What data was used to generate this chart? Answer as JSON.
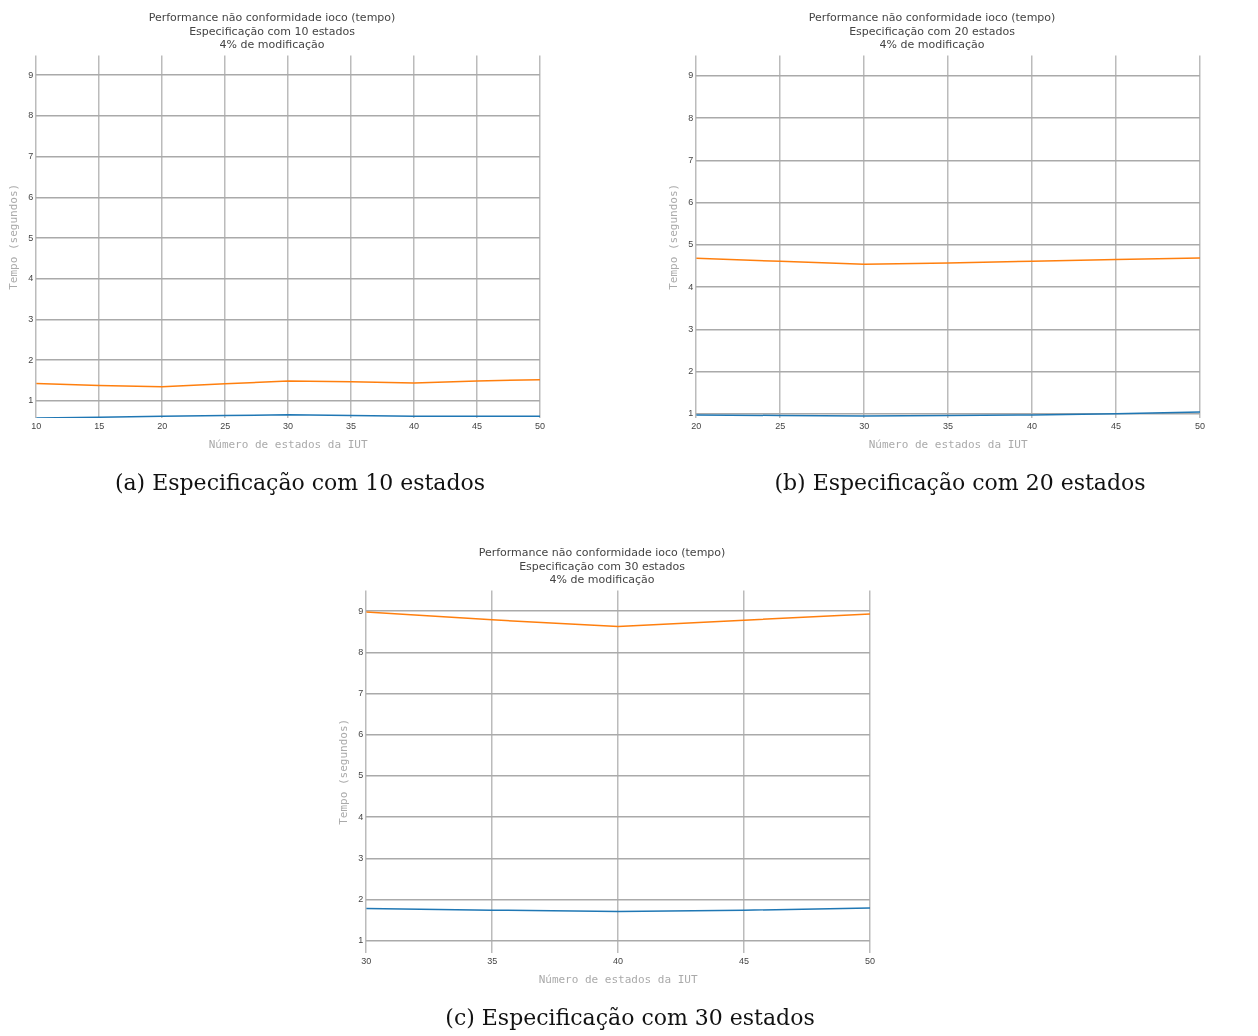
{
  "chart_data": [
    {
      "type": "line",
      "title": "Performance não conformidade ioco (tempo)",
      "subtitle": "Especificação com 10 estados\n4% de modificação",
      "xlabel": "Número de estados da IUT",
      "ylabel": "Tempo (segundos)",
      "x": [
        10,
        15,
        20,
        25,
        30,
        35,
        40,
        45,
        50
      ],
      "series": [
        {
          "color": "#1f77b4",
          "values": [
            0.58,
            0.6,
            0.62,
            0.64,
            0.66,
            0.64,
            0.62,
            0.62,
            0.62
          ]
        },
        {
          "color": "#ff7f0e",
          "values": [
            1.43,
            1.38,
            1.35,
            1.42,
            1.49,
            1.47,
            1.44,
            1.49,
            1.52
          ]
        }
      ],
      "xlim": [
        10,
        50
      ],
      "xticks": [
        10,
        15,
        20,
        25,
        30,
        35,
        40,
        45,
        50
      ],
      "ylim": [
        0.58,
        9.48
      ],
      "yticks": [
        1,
        2,
        3,
        4,
        5,
        6,
        7,
        8,
        9
      ],
      "grid": true,
      "legend": false,
      "annotations": [
        "(a) Especificação com 10 estados"
      ]
    },
    {
      "type": "line",
      "title": "Performance não conformidade ioco (tempo)",
      "subtitle": "Especificação com 20 estados\n4% de modificação",
      "xlabel": "Número de estados da IUT",
      "ylabel": "Tempo (segundos)",
      "x": [
        20,
        25,
        30,
        35,
        40,
        45,
        50
      ],
      "series": [
        {
          "color": "#1f77b4",
          "values": [
            0.97,
            0.96,
            0.95,
            0.96,
            0.97,
            1.0,
            1.04
          ]
        },
        {
          "color": "#ff7f0e",
          "values": [
            4.68,
            4.61,
            4.54,
            4.57,
            4.61,
            4.65,
            4.69
          ]
        }
      ],
      "xlim": [
        20,
        50
      ],
      "xticks": [
        20,
        25,
        30,
        35,
        40,
        45,
        50
      ],
      "ylim": [
        0.9,
        9.48
      ],
      "yticks": [
        1,
        2,
        3,
        4,
        5,
        6,
        7,
        8,
        9
      ],
      "grid": true,
      "legend": false,
      "annotations": [
        "(b) Especificação com 20 estados"
      ]
    },
    {
      "type": "line",
      "title": "Performance não conformidade ioco (tempo)",
      "subtitle": "Especificação com 30 estados\n4% de modificação",
      "xlabel": "Número de estados da IUT",
      "ylabel": "Tempo (segundos)",
      "x": [
        30,
        35,
        40,
        45,
        50
      ],
      "series": [
        {
          "color": "#1f77b4",
          "values": [
            1.78,
            1.74,
            1.71,
            1.74,
            1.79
          ]
        },
        {
          "color": "#ff7f0e",
          "values": [
            8.98,
            8.79,
            8.63,
            8.78,
            8.93
          ]
        }
      ],
      "xlim": [
        30,
        50
      ],
      "xticks": [
        30,
        35,
        40,
        45,
        50
      ],
      "ylim": [
        0.7,
        9.5
      ],
      "yticks": [
        1,
        2,
        3,
        4,
        5,
        6,
        7,
        8,
        9
      ],
      "grid": true,
      "legend": false,
      "annotations": [
        "(c) Especificação com 30 estados"
      ]
    }
  ]
}
